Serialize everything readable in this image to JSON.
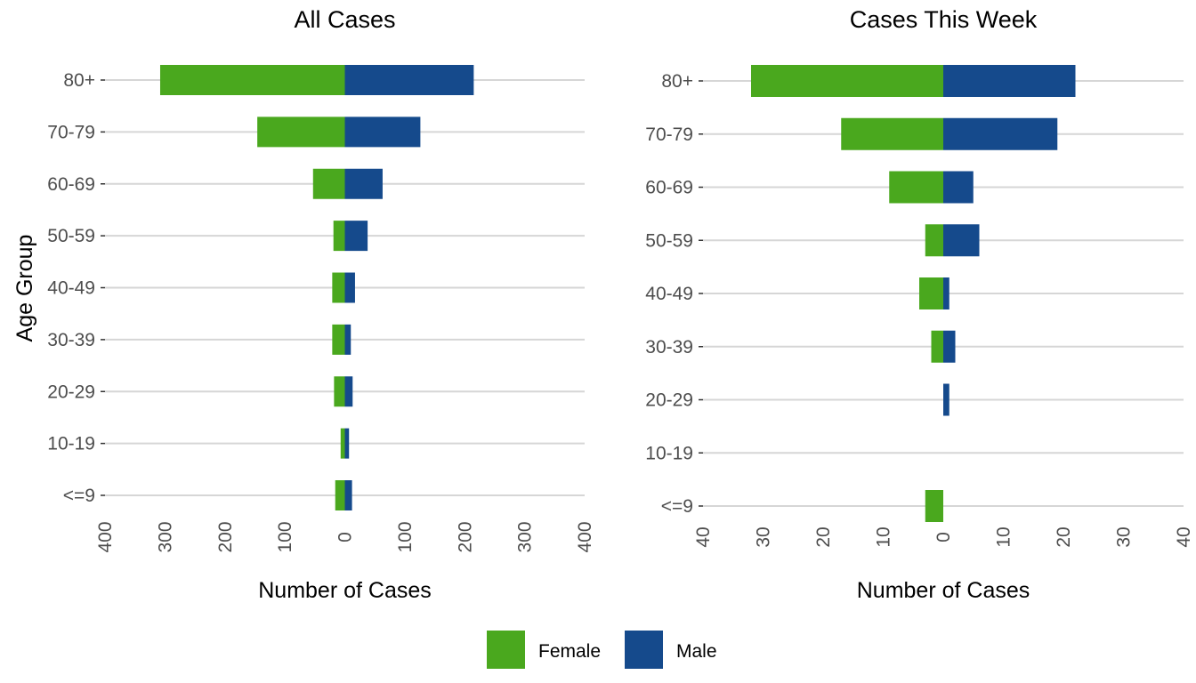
{
  "colors": {
    "female": "#4aa81e",
    "male": "#154a8c"
  },
  "y_axis_label": "Age Group",
  "legend": {
    "items": [
      {
        "label": "Female",
        "key": "female"
      },
      {
        "label": "Male",
        "key": "male"
      }
    ]
  },
  "chart_data": [
    {
      "type": "bar",
      "orientation": "horizontal",
      "title": "All Cases",
      "xlabel": "Number of Cases",
      "ylabel": "Age Group",
      "xlim": [
        -400,
        400
      ],
      "xticks": [
        -400,
        -300,
        -200,
        -100,
        0,
        100,
        200,
        300,
        400
      ],
      "xtick_labels": [
        "400",
        "300",
        "200",
        "100",
        "0",
        "100",
        "200",
        "300",
        "400"
      ],
      "categories": [
        "<=9",
        "10-19",
        "20-29",
        "30-39",
        "40-49",
        "50-59",
        "60-69",
        "70-79",
        "80+"
      ],
      "series": [
        {
          "name": "Female",
          "values": [
            16,
            7,
            18,
            21,
            21,
            19,
            53,
            146,
            308
          ]
        },
        {
          "name": "Male",
          "values": [
            12,
            7,
            13,
            10,
            17,
            38,
            63,
            126,
            215
          ]
        }
      ]
    },
    {
      "type": "bar",
      "orientation": "horizontal",
      "title": "Cases This Week",
      "xlabel": "Number of Cases",
      "ylabel": "",
      "xlim": [
        -40,
        40
      ],
      "xticks": [
        -40,
        -30,
        -20,
        -10,
        0,
        10,
        20,
        30,
        40
      ],
      "xtick_labels": [
        "40",
        "30",
        "20",
        "10",
        "0",
        "10",
        "20",
        "30",
        "40"
      ],
      "categories": [
        "<=9",
        "10-19",
        "20-29",
        "30-39",
        "40-49",
        "50-59",
        "60-69",
        "70-79",
        "80+"
      ],
      "series": [
        {
          "name": "Female",
          "values": [
            3,
            0,
            0,
            2,
            4,
            3,
            9,
            17,
            32
          ]
        },
        {
          "name": "Male",
          "values": [
            0,
            0,
            1,
            2,
            1,
            6,
            5,
            19,
            22
          ]
        }
      ]
    }
  ]
}
